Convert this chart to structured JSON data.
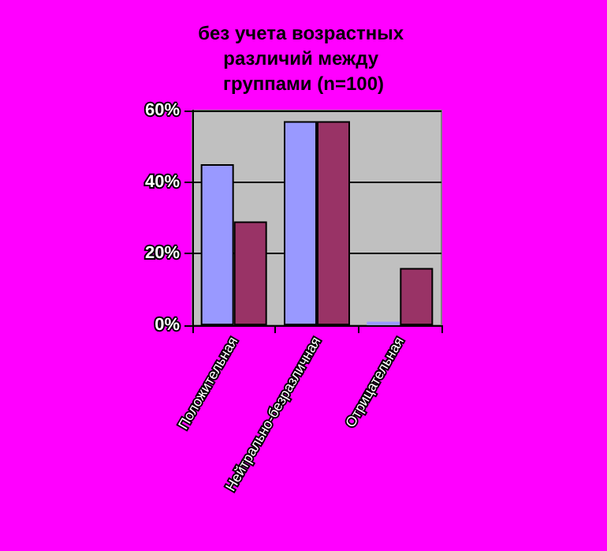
{
  "chart_data": {
    "type": "bar",
    "title": "без учета возрастных различий между группами (n=100)",
    "categories": [
      "Положительная",
      "Нейтрально-безразличная",
      "Отрицательная"
    ],
    "series": [
      {
        "color": "#9999ff",
        "values": [
          45,
          57,
          1
        ]
      },
      {
        "color": "#993366",
        "values": [
          29,
          57,
          16
        ]
      }
    ],
    "ylim": [
      0,
      60
    ],
    "yticks": [
      {
        "value": 0,
        "label": "0%"
      },
      {
        "value": 20,
        "label": "20%"
      },
      {
        "value": 40,
        "label": "40%"
      },
      {
        "value": 60,
        "label": "60%"
      }
    ],
    "grid": "y"
  }
}
